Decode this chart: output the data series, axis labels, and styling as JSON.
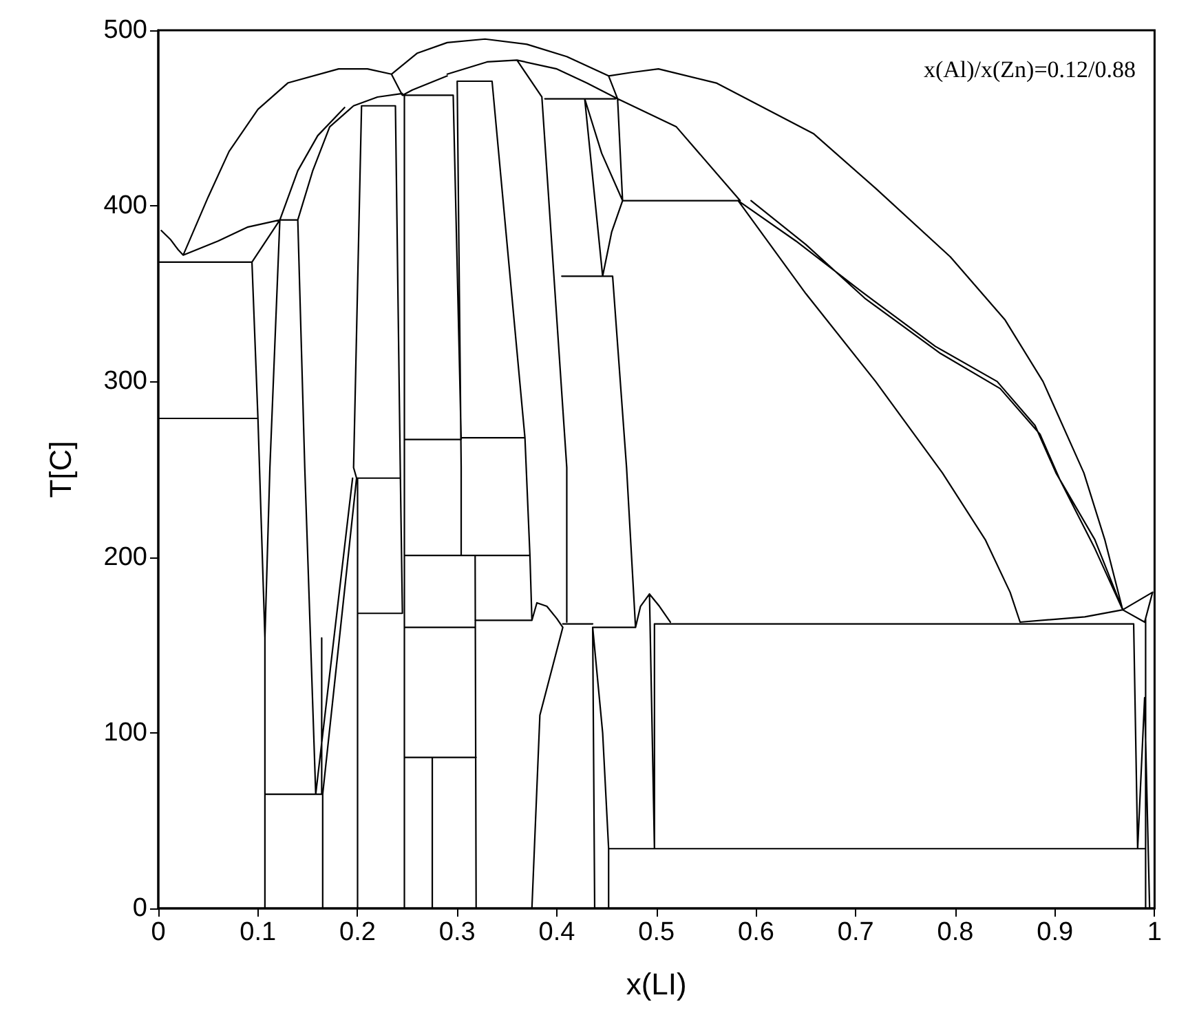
{
  "chart_data": {
    "type": "line",
    "xlabel": "x(LI)",
    "ylabel": "T[C]",
    "annotations": [
      "x(Al)/x(Zn)=0.12/0.88"
    ],
    "xlim": [
      0,
      1
    ],
    "ylim": [
      0,
      500
    ],
    "xticks": [
      0,
      0.1,
      0.2,
      0.3,
      0.4,
      0.5,
      0.6,
      0.7,
      0.8,
      0.9,
      1
    ],
    "yticks": [
      0,
      100,
      200,
      300,
      400,
      500
    ],
    "grid": false,
    "marker": "none",
    "line_style": "solid",
    "series": [
      {
        "color": "#000000",
        "x": [
          0,
          0.094,
          null,
          0,
          0.1,
          null,
          0.003,
          0.012,
          0.02,
          0.025,
          null,
          0.025,
          0.05,
          0.071,
          0.1,
          0.13,
          0.181,
          0.21,
          0.234,
          null,
          0.234,
          0.26,
          0.29,
          0.328,
          0.37,
          0.41,
          0.452,
          null,
          0.452,
          0.461,
          null,
          0.452,
          0.475,
          0.502,
          0.56,
          0.658,
          0.72,
          0.795,
          0.85,
          0.888,
          0.929,
          0.95,
          0.968,
          null,
          0.234,
          0.245,
          null,
          0.245,
          0.255,
          0.29,
          null,
          0.29,
          0.33,
          0.36,
          0.4,
          0.43,
          0.461,
          null,
          0.025,
          0.06,
          0.09,
          0.122,
          null,
          0.094,
          0.122,
          null,
          0.122,
          0.14,
          null,
          0.122,
          0.14,
          0.16,
          0.187,
          null,
          0.14,
          0.155,
          0.172,
          0.196,
          0.22,
          0.245,
          null,
          0.094,
          0.1,
          0.107,
          0.107,
          null,
          0.122,
          0.112,
          0.107,
          null,
          0.14,
          0.147,
          0.158,
          null,
          0.107,
          0.165,
          null,
          0.165,
          0.165,
          null,
          0.164,
          0.164,
          null,
          0.158,
          0.195,
          null,
          0.165,
          0.199,
          null,
          0.199,
          0.243,
          null,
          0.204,
          0.238,
          null,
          0.2,
          0.245,
          null,
          0.2,
          0.2,
          null,
          0.204,
          0.196,
          0.199,
          null,
          0.238,
          0.243,
          0.245,
          null,
          0.247,
          0.247,
          null,
          0.245,
          0.296,
          null,
          0.296,
          0.304,
          null,
          0.3,
          0.335,
          null,
          0.3,
          0.304,
          0.304,
          null,
          0.247,
          0.304,
          null,
          0.304,
          0.368,
          null,
          0.247,
          0.373,
          null,
          0.247,
          0.318,
          null,
          0.318,
          0.375,
          null,
          0.247,
          0.319,
          null,
          0.275,
          0.275,
          null,
          0.319,
          0.318,
          null,
          0.335,
          0.368,
          0.373,
          0.375,
          null,
          0.36,
          0.385,
          0.41,
          0.41,
          null,
          0.388,
          0.459,
          null,
          0.405,
          0.456,
          null,
          0.428,
          0.446,
          null,
          0.428,
          0.445,
          0.466,
          null,
          0.446,
          0.455,
          0.466,
          null,
          0.461,
          0.466,
          null,
          0.456,
          0.47,
          0.479,
          null,
          0.466,
          0.582,
          null,
          0.461,
          0.52,
          0.584,
          null,
          0.582,
          0.65,
          0.72,
          0.787,
          0.83,
          0.855,
          0.865,
          null,
          0.582,
          0.64,
          0.704,
          0.78,
          0.842,
          0.88,
          0.901,
          0.94,
          0.968,
          null,
          0.595,
          0.65,
          0.71,
          0.785,
          0.845,
          0.885,
          0.905,
          0.94,
          0.968,
          null,
          0.375,
          0.38,
          0.39,
          0.4,
          0.406,
          null,
          0.375,
          0.383,
          0.406,
          null,
          0.406,
          0.436,
          null,
          0.436,
          0.479,
          null,
          0.436,
          0.438,
          null,
          0.436,
          0.446,
          0.452,
          0.452,
          null,
          0.479,
          0.484,
          0.493,
          0.503,
          0.514,
          null,
          0.493,
          0.498,
          null,
          0.498,
          0.979,
          null,
          0.498,
          0.498,
          null,
          0.452,
          0.991,
          null,
          0.865,
          0.93,
          0.968,
          null,
          0.979,
          0.983,
          null,
          0.968,
          0.998,
          null,
          0.968,
          0.99,
          0.998,
          null,
          0.991,
          0.991,
          null,
          0.983,
          0.99,
          0.995
        ],
        "values": [
          368,
          368,
          null,
          279,
          279,
          null,
          386,
          381,
          375,
          372,
          null,
          372,
          405,
          431,
          455,
          470,
          478,
          478,
          475,
          null,
          475,
          487,
          493,
          495,
          492,
          485,
          474,
          null,
          474,
          461,
          null,
          474,
          476,
          478,
          470,
          441,
          410,
          371,
          335,
          300,
          248,
          210,
          170,
          null,
          475,
          463,
          null,
          463,
          466,
          474,
          null,
          475,
          482,
          483,
          478,
          470,
          461,
          null,
          372,
          380,
          388,
          392,
          null,
          368,
          392,
          null,
          392,
          392,
          null,
          392,
          420,
          440,
          456,
          null,
          392,
          420,
          445,
          457,
          462,
          464,
          null,
          368,
          279,
          154,
          0,
          null,
          392,
          251,
          154,
          null,
          392,
          251,
          65,
          null,
          65,
          65,
          null,
          65,
          0,
          null,
          154,
          65,
          null,
          65,
          245,
          null,
          65,
          245,
          null,
          245,
          245,
          null,
          457,
          457,
          null,
          168,
          168,
          null,
          0,
          245,
          null,
          457,
          251,
          245,
          null,
          457,
          245,
          168,
          null,
          0,
          463,
          null,
          463,
          463,
          null,
          463,
          267,
          null,
          471,
          471,
          null,
          471,
          251,
          201,
          null,
          267,
          267,
          null,
          268,
          268,
          null,
          201,
          201,
          null,
          160,
          160,
          null,
          164,
          164,
          null,
          86,
          86,
          null,
          0,
          86,
          null,
          0,
          201,
          null,
          471,
          268,
          201,
          164,
          null,
          483,
          462,
          251,
          163,
          null,
          461,
          461,
          null,
          360,
          360,
          null,
          461,
          360,
          null,
          461,
          430,
          403,
          null,
          360,
          385,
          403,
          null,
          461,
          403,
          null,
          360,
          251,
          160,
          null,
          403,
          403,
          null,
          461,
          445,
          403,
          null,
          403,
          350,
          300,
          248,
          210,
          180,
          163,
          null,
          403,
          380,
          352,
          320,
          300,
          275,
          248,
          210,
          170,
          null,
          403,
          378,
          347,
          316,
          296,
          270,
          244,
          205,
          170,
          null,
          164,
          174,
          172,
          165,
          160,
          null,
          0,
          110,
          160,
          null,
          162,
          162,
          null,
          160,
          160,
          null,
          160,
          0,
          null,
          160,
          100,
          34,
          0,
          null,
          160,
          172,
          179,
          172,
          163,
          null,
          179,
          34,
          null,
          162,
          162,
          null,
          162,
          34,
          null,
          34,
          34,
          null,
          163,
          166,
          170,
          null,
          162,
          34,
          null,
          170,
          180,
          null,
          170,
          163,
          180,
          null,
          165,
          0,
          null,
          34,
          120,
          0
        ]
      }
    ]
  }
}
